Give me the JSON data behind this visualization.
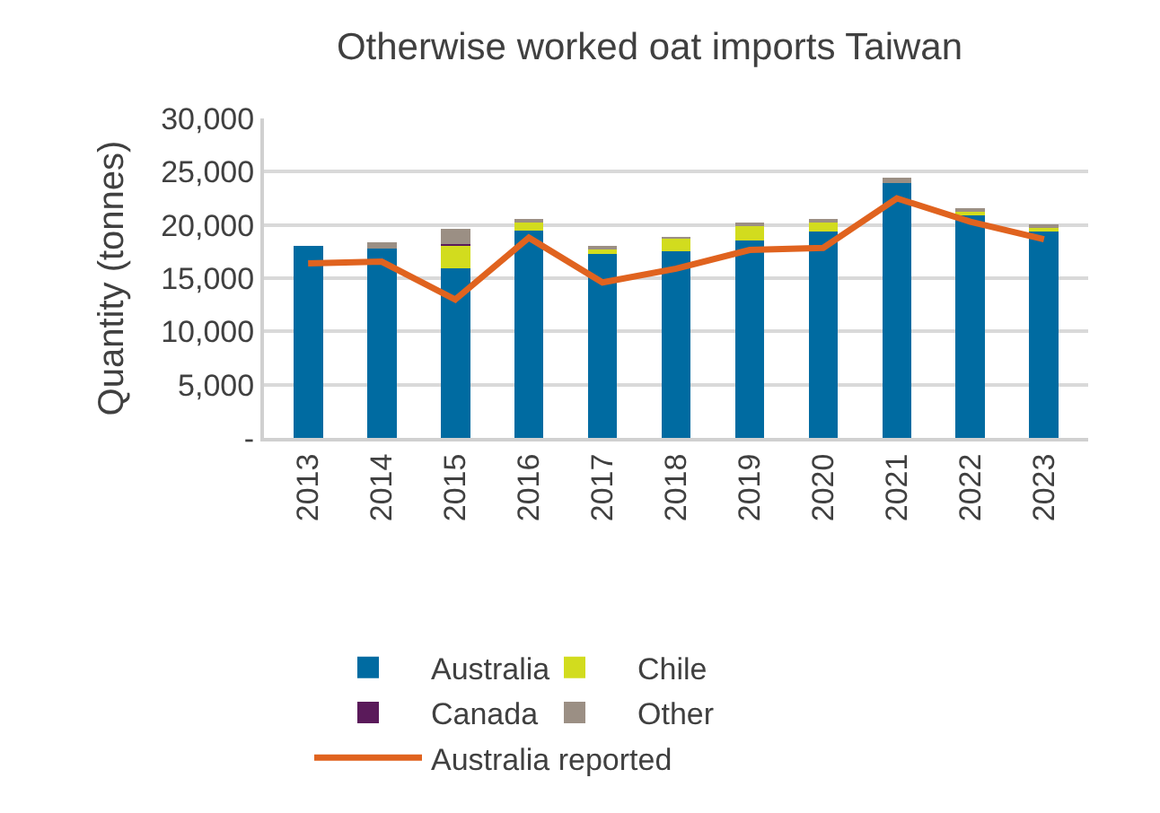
{
  "chart_data": {
    "type": "bar",
    "title": "Otherwise worked oat imports Taiwan",
    "ylabel": "Quantity (tonnes)",
    "categories": [
      "2013",
      "2014",
      "2015",
      "2016",
      "2017",
      "2018",
      "2019",
      "2020",
      "2021",
      "2022",
      "2023"
    ],
    "stacked": true,
    "series": [
      {
        "name": "Australia",
        "color": "#006ba1",
        "values": [
          18000,
          17750,
          15950,
          19450,
          17250,
          17500,
          18500,
          19400,
          23950,
          21050,
          19400
        ]
      },
      {
        "name": "Chile",
        "color": "#d2dc1e",
        "values": [
          0,
          0,
          2100,
          800,
          600,
          1250,
          1550,
          900,
          null,
          250,
          400
        ]
      },
      {
        "name": "Canada",
        "color": "#5a1a5a",
        "values": [
          0,
          0,
          150,
          0,
          0,
          0,
          0,
          0,
          0,
          0,
          0
        ]
      },
      {
        "name": "Other",
        "color": "#9b8f84",
        "values": [
          0,
          650,
          1400,
          200,
          150,
          100,
          100,
          150,
          500,
          150,
          150
        ]
      },
      {
        "name": "Australia reported",
        "type": "line",
        "color": "#e0631f",
        "values": [
          16400,
          16550,
          13000,
          18800,
          14600,
          15900,
          17650,
          17850,
          22500,
          20300,
          18650
        ]
      }
    ],
    "ylim": [
      0,
      30000
    ],
    "yticks": [
      {
        "value": 0,
        "label": "-"
      },
      {
        "value": 5000,
        "label": "5,000"
      },
      {
        "value": 10000,
        "label": "10,000"
      },
      {
        "value": 15000,
        "label": "15,000"
      },
      {
        "value": 20000,
        "label": "20,000"
      },
      {
        "value": 25000,
        "label": "25,000"
      },
      {
        "value": 30000,
        "label": "30,000"
      }
    ],
    "grid": "y",
    "legend": "bottom",
    "marker": "none",
    "line_style": "solid"
  }
}
